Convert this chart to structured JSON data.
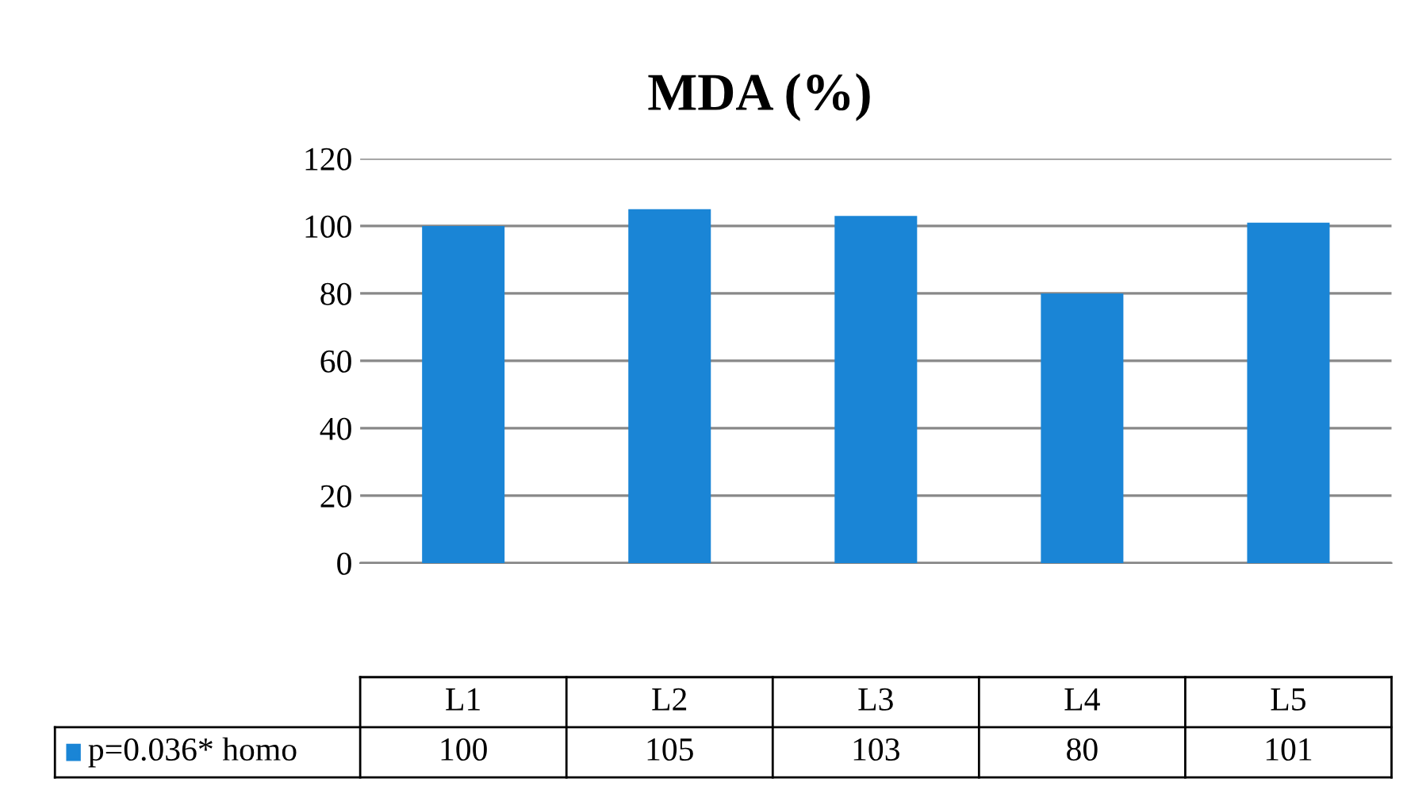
{
  "chart_data": {
    "type": "bar",
    "title": "MDA (%)",
    "categories": [
      "L1",
      "L2",
      "L3",
      "L4",
      "L5"
    ],
    "series": [
      {
        "name": "p=0.036* homo",
        "color": "#1a85d6",
        "values": [
          100,
          105,
          103,
          80,
          101
        ]
      }
    ],
    "ylim": [
      0,
      120
    ],
    "yticks": [
      0,
      20,
      40,
      60,
      80,
      100,
      120
    ],
    "grid": "y",
    "data_labels": true,
    "legend": "bottom"
  }
}
